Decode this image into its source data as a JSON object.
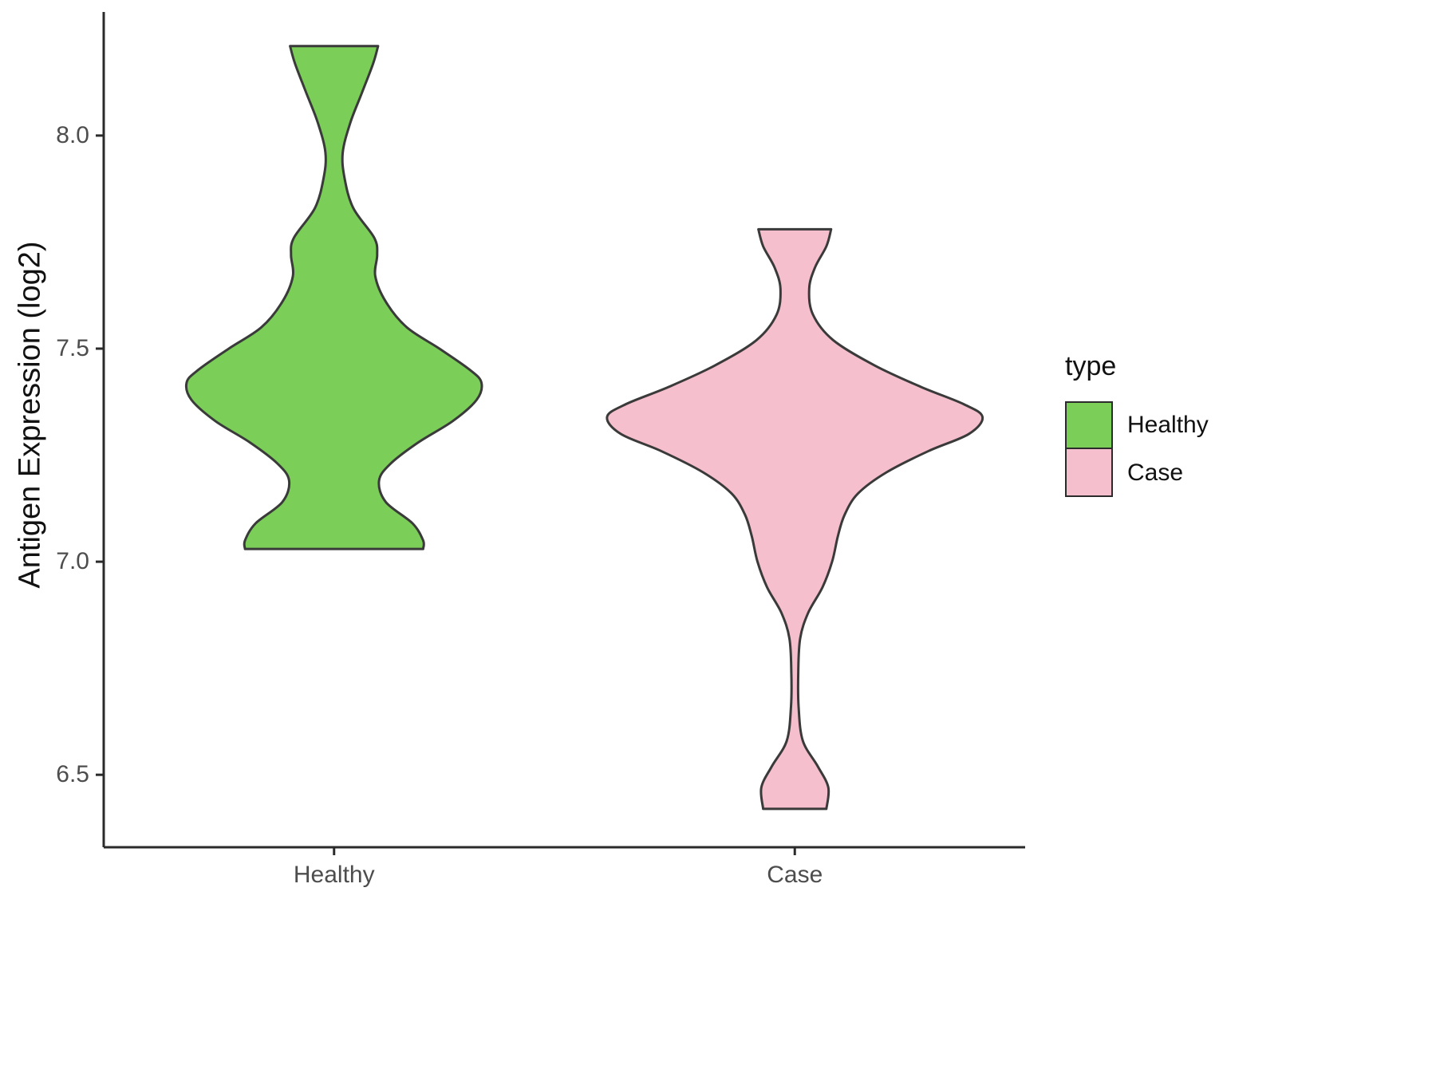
{
  "chart_data": {
    "type": "violin",
    "title": "",
    "ylabel": "Antigen Expression (log2)",
    "xlabel": "",
    "categories": [
      "Healthy",
      "Case"
    ],
    "ylim": [
      6.33,
      8.29
    ],
    "yticks": [
      {
        "value": 6.5,
        "label": "6.5"
      },
      {
        "value": 7.0,
        "label": "7.0"
      },
      {
        "value": 7.5,
        "label": "7.5"
      },
      {
        "value": 8.0,
        "label": "8.0"
      }
    ],
    "grid": "off",
    "legend": {
      "title": "type",
      "position": "right",
      "entries": [
        {
          "label": "Healthy",
          "color": "#7BCE58"
        },
        {
          "label": "Case",
          "color": "#F6BFCD"
        }
      ]
    },
    "outline_color": "#3A3A3A",
    "axis_color": "#2B2B2B",
    "tick_label_color": "#4D4D4D",
    "series": [
      {
        "name": "Healthy",
        "fill": "#7BCE58",
        "profile": [
          [
            8.21,
            0.23
          ],
          [
            8.17,
            0.205
          ],
          [
            8.1,
            0.145
          ],
          [
            8.03,
            0.085
          ],
          [
            7.96,
            0.045
          ],
          [
            7.9,
            0.055
          ],
          [
            7.83,
            0.1
          ],
          [
            7.76,
            0.21
          ],
          [
            7.72,
            0.225
          ],
          [
            7.67,
            0.215
          ],
          [
            7.61,
            0.27
          ],
          [
            7.55,
            0.38
          ],
          [
            7.5,
            0.55
          ],
          [
            7.45,
            0.71
          ],
          [
            7.42,
            0.77
          ],
          [
            7.38,
            0.745
          ],
          [
            7.33,
            0.62
          ],
          [
            7.28,
            0.44
          ],
          [
            7.23,
            0.295
          ],
          [
            7.19,
            0.235
          ],
          [
            7.14,
            0.27
          ],
          [
            7.09,
            0.41
          ],
          [
            7.05,
            0.465
          ],
          [
            7.03,
            0.465
          ]
        ]
      },
      {
        "name": "Case",
        "fill": "#F6BFCD",
        "profile": [
          [
            7.78,
            0.19
          ],
          [
            7.74,
            0.165
          ],
          [
            7.69,
            0.105
          ],
          [
            7.64,
            0.075
          ],
          [
            7.58,
            0.095
          ],
          [
            7.52,
            0.2
          ],
          [
            7.46,
            0.42
          ],
          [
            7.41,
            0.66
          ],
          [
            7.37,
            0.88
          ],
          [
            7.34,
            0.98
          ],
          [
            7.3,
            0.91
          ],
          [
            7.26,
            0.7
          ],
          [
            7.21,
            0.48
          ],
          [
            7.16,
            0.33
          ],
          [
            7.11,
            0.26
          ],
          [
            7.06,
            0.225
          ],
          [
            7.0,
            0.195
          ],
          [
            6.94,
            0.145
          ],
          [
            6.88,
            0.07
          ],
          [
            6.82,
            0.028
          ],
          [
            6.74,
            0.018
          ],
          [
            6.66,
            0.02
          ],
          [
            6.58,
            0.042
          ],
          [
            6.52,
            0.12
          ],
          [
            6.47,
            0.175
          ],
          [
            6.42,
            0.165
          ]
        ]
      }
    ]
  }
}
